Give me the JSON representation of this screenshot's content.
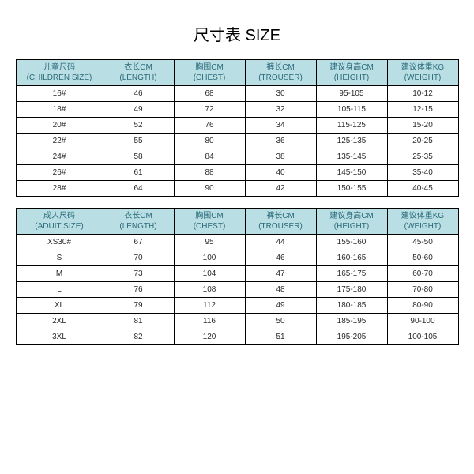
{
  "title": "尺寸表 SIZE",
  "colors": {
    "header_bg": "#b9dfe4",
    "header_text": "#2b6a7a",
    "border": "#000000",
    "background": "#ffffff",
    "cell_text": "#2a2a2a"
  },
  "tables": [
    {
      "columns": [
        {
          "cn": "儿童尺码",
          "en": "(CHILDREN SIZE)"
        },
        {
          "cn": "衣长CM",
          "en": "(LENGTH)"
        },
        {
          "cn": "胸围CM",
          "en": "(CHEST)"
        },
        {
          "cn": "裤长CM",
          "en": "(TROUSER)"
        },
        {
          "cn": "建议身高CM",
          "en": "(HEIGHT)"
        },
        {
          "cn": "建议体重KG",
          "en": "(WEIGHT)"
        }
      ],
      "rows": [
        [
          "16#",
          "46",
          "68",
          "30",
          "95-105",
          "10-12"
        ],
        [
          "18#",
          "49",
          "72",
          "32",
          "105-115",
          "12-15"
        ],
        [
          "20#",
          "52",
          "76",
          "34",
          "115-125",
          "15-20"
        ],
        [
          "22#",
          "55",
          "80",
          "36",
          "125-135",
          "20-25"
        ],
        [
          "24#",
          "58",
          "84",
          "38",
          "135-145",
          "25-35"
        ],
        [
          "26#",
          "61",
          "88",
          "40",
          "145-150",
          "35-40"
        ],
        [
          "28#",
          "64",
          "90",
          "42",
          "150-155",
          "40-45"
        ]
      ]
    },
    {
      "columns": [
        {
          "cn": "成人尺码",
          "en": "(ADUIT SIZE)"
        },
        {
          "cn": "衣长CM",
          "en": "(LENGTH)"
        },
        {
          "cn": "胸围CM",
          "en": "(CHEST)"
        },
        {
          "cn": "裤长CM",
          "en": "(TROUSER)"
        },
        {
          "cn": "建议身高CM",
          "en": "(HEIGHT)"
        },
        {
          "cn": "建议体重KG",
          "en": "(WEIGHT)"
        }
      ],
      "rows": [
        [
          "XS30#",
          "67",
          "95",
          "44",
          "155-160",
          "45-50"
        ],
        [
          "S",
          "70",
          "100",
          "46",
          "160-165",
          "50-60"
        ],
        [
          "M",
          "73",
          "104",
          "47",
          "165-175",
          "60-70"
        ],
        [
          "L",
          "76",
          "108",
          "48",
          "175-180",
          "70-80"
        ],
        [
          "XL",
          "79",
          "112",
          "49",
          "180-185",
          "80-90"
        ],
        [
          "2XL",
          "81",
          "116",
          "50",
          "185-195",
          "90-100"
        ],
        [
          "3XL",
          "82",
          "120",
          "51",
          "195-205",
          "100-105"
        ]
      ]
    }
  ]
}
